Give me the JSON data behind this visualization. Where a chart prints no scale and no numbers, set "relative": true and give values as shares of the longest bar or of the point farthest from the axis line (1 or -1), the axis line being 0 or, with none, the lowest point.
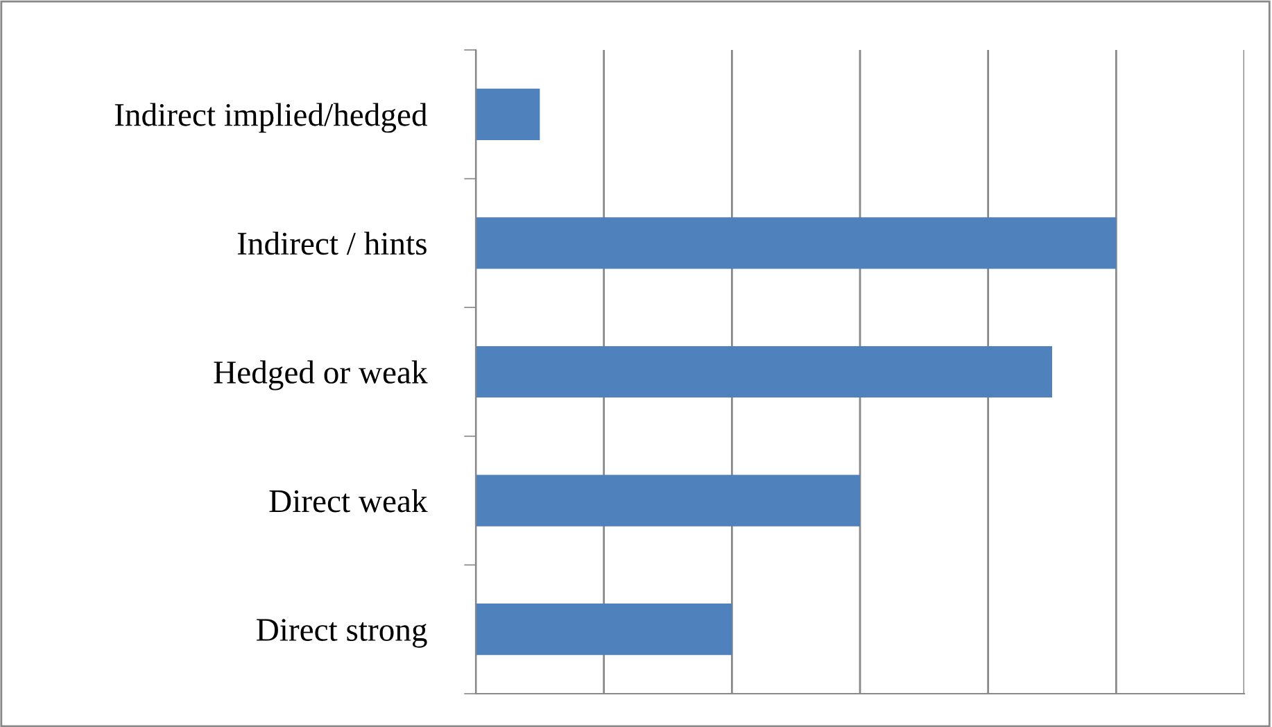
{
  "chart_data": {
    "type": "bar",
    "orientation": "horizontal",
    "relative": true,
    "categories": [
      "Indirect implied/hedged",
      "Indirect / hints",
      "Hedged or weak",
      "Direct weak",
      "Direct strong"
    ],
    "values": [
      0.1,
      1,
      0.9,
      0.6,
      0.4
    ],
    "color": "#4f81bd",
    "grid": "x",
    "tick_labels": "y"
  }
}
